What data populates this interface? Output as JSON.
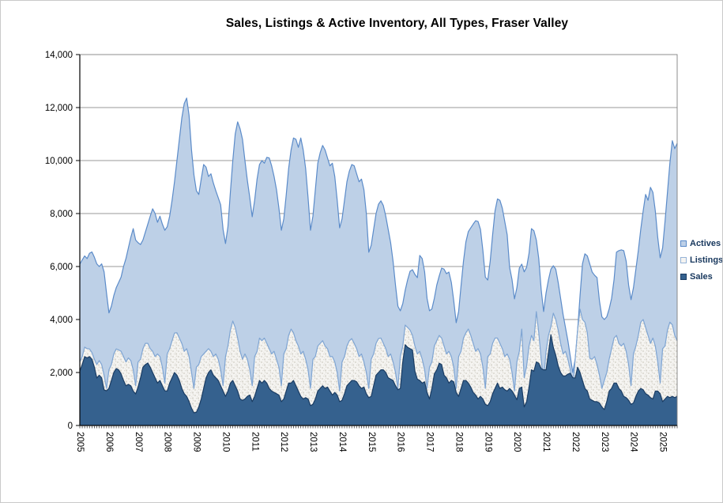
{
  "chart_data": {
    "type": "area",
    "mode": "overlapping",
    "title": "Sales, Listings & Active Inventory, All Types, Fraser Valley",
    "x_start": "2005-01",
    "x_end": "2025-07",
    "frequency": "monthly",
    "grid": "horizontal",
    "legend_position": "right",
    "legend_text_color": "#17375D",
    "x_tick_labels": [
      "2005",
      "2006",
      "2007",
      "2008",
      "2009",
      "2010",
      "2011",
      "2012",
      "2013",
      "2014",
      "2015",
      "2016",
      "2017",
      "2018",
      "2019",
      "2020",
      "2021",
      "2022",
      "2023",
      "2024",
      "2025"
    ],
    "y_axis": {
      "min": 0,
      "max": 14000,
      "step": 2000,
      "tick_labels": [
        "0",
        "2,000",
        "4,000",
        "6,000",
        "8,000",
        "10,000",
        "12,000",
        "14,000"
      ]
    },
    "series": [
      {
        "name": "Actives",
        "fill": "#BDD0E7",
        "stroke": "#5B8BC9",
        "values": [
          6090,
          6250,
          6400,
          6300,
          6500,
          6550,
          6350,
          6100,
          6000,
          6100,
          5800,
          5000,
          4250,
          4500,
          4900,
          5200,
          5400,
          5600,
          6000,
          6300,
          6700,
          7100,
          7430,
          7000,
          6900,
          6830,
          7000,
          7300,
          7600,
          7900,
          8180,
          8000,
          7670,
          7900,
          7600,
          7370,
          7500,
          7900,
          8500,
          9200,
          10000,
          10800,
          11600,
          12150,
          12360,
          11700,
          10400,
          9460,
          8860,
          8720,
          9300,
          9850,
          9750,
          9400,
          9500,
          9150,
          8860,
          8600,
          8330,
          7400,
          6870,
          7500,
          8800,
          10000,
          11000,
          11460,
          11200,
          10800,
          10000,
          9250,
          8600,
          7880,
          8500,
          9300,
          9850,
          10000,
          9900,
          10120,
          10100,
          9800,
          9400,
          8900,
          8200,
          7370,
          7800,
          8700,
          9700,
          10400,
          10850,
          10800,
          10500,
          10850,
          10400,
          9700,
          8600,
          7370,
          7900,
          8900,
          9900,
          10300,
          10570,
          10400,
          10100,
          9800,
          9900,
          9400,
          8500,
          7460,
          7800,
          8500,
          9200,
          9600,
          9850,
          9800,
          9500,
          9200,
          9300,
          8900,
          8000,
          6540,
          6800,
          7400,
          8000,
          8350,
          8480,
          8300,
          7900,
          7400,
          6900,
          6200,
          5300,
          4500,
          4330,
          4600,
          5100,
          5500,
          5820,
          5880,
          5700,
          5580,
          6420,
          6300,
          5800,
          4800,
          4330,
          4400,
          4800,
          5300,
          5640,
          5940,
          5900,
          5730,
          5790,
          5400,
          4700,
          3880,
          4300,
          5280,
          6200,
          6930,
          7320,
          7460,
          7600,
          7730,
          7700,
          7400,
          6600,
          5600,
          5490,
          6200,
          7200,
          8100,
          8550,
          8500,
          8200,
          7700,
          7200,
          5970,
          5500,
          4780,
          5200,
          5940,
          6090,
          5800,
          5970,
          6500,
          7430,
          7350,
          7000,
          6300,
          5130,
          4300,
          5000,
          5500,
          5900,
          6030,
          5900,
          5400,
          4800,
          4200,
          3700,
          3200,
          2600,
          2000,
          2500,
          3600,
          4900,
          6100,
          6480,
          6400,
          6100,
          5790,
          5670,
          5580,
          4700,
          4100,
          4000,
          4100,
          4400,
          4800,
          5500,
          6540,
          6600,
          6630,
          6600,
          6200,
          5300,
          4750,
          5200,
          5900,
          6600,
          7400,
          8100,
          8720,
          8500,
          8990,
          8800,
          8100,
          7100,
          6330,
          6700,
          7700,
          8800,
          9900,
          10750,
          10450,
          10650
        ]
      },
      {
        "name": "Listings",
        "fill": "#F5F4F1",
        "fill_style": "speckle-texture",
        "speckle_color": "#D3D0C7",
        "stroke": "#7FA5D3",
        "values": [
          2400,
          2600,
          2960,
          2900,
          2890,
          2750,
          2500,
          2300,
          2450,
          2300,
          1900,
          1400,
          2100,
          2300,
          2700,
          2890,
          2850,
          2800,
          2600,
          2400,
          2550,
          2450,
          2100,
          1500,
          2400,
          2500,
          2900,
          3100,
          3100,
          2900,
          2800,
          2600,
          2700,
          2600,
          2200,
          1600,
          2700,
          2900,
          3200,
          3490,
          3500,
          3300,
          3100,
          2800,
          2900,
          2600,
          2000,
          1400,
          2200,
          2300,
          2600,
          2700,
          2800,
          2900,
          2800,
          2600,
          2700,
          2500,
          2100,
          1500,
          2600,
          3000,
          3600,
          3940,
          3700,
          3300,
          2800,
          2500,
          2700,
          2500,
          2100,
          1500,
          2600,
          2800,
          3300,
          3200,
          3300,
          3100,
          2900,
          2700,
          2800,
          2500,
          2200,
          1500,
          2700,
          2900,
          3400,
          3640,
          3500,
          3200,
          3000,
          2700,
          2800,
          2500,
          2100,
          1400,
          2500,
          2600,
          3000,
          3100,
          3200,
          3000,
          2900,
          2600,
          2600,
          2400,
          2000,
          1300,
          2400,
          2600,
          3000,
          3200,
          3280,
          3100,
          2900,
          2600,
          2700,
          2400,
          2000,
          1400,
          2500,
          2700,
          3100,
          3280,
          3300,
          3100,
          2900,
          2600,
          2700,
          2400,
          2000,
          1400,
          2600,
          3000,
          3790,
          3700,
          3600,
          3400,
          3000,
          2700,
          2800,
          2500,
          2100,
          1400,
          2200,
          2400,
          3000,
          3200,
          3400,
          3300,
          3000,
          2700,
          2800,
          2600,
          2200,
          1400,
          2600,
          2800,
          3300,
          3500,
          3640,
          3400,
          3100,
          2800,
          2900,
          2700,
          2200,
          1400,
          2600,
          2700,
          3100,
          3300,
          3300,
          3100,
          2900,
          2600,
          2700,
          2500,
          2000,
          1300,
          2400,
          2800,
          3640,
          1800,
          2240,
          3000,
          3400,
          3200,
          4300,
          3500,
          2500,
          1700,
          2800,
          3400,
          3730,
          4240,
          4000,
          3600,
          3100,
          2700,
          2800,
          2500,
          2100,
          1400,
          2500,
          3600,
          4390,
          4000,
          3900,
          3500,
          2540,
          2500,
          2600,
          2300,
          1900,
          1400,
          1700,
          2000,
          2500,
          2900,
          3300,
          3400,
          3100,
          3000,
          3100,
          2800,
          2300,
          1500,
          2700,
          3000,
          3400,
          3900,
          4000,
          3700,
          3400,
          3100,
          3300,
          3000,
          2400,
          1600,
          2900,
          3000,
          3600,
          3900,
          3800,
          3400,
          3200
        ]
      },
      {
        "name": "Sales",
        "fill": "#35618E",
        "stroke": "#1A3C63",
        "values": [
          2060,
          2300,
          2600,
          2550,
          2600,
          2500,
          2200,
          1790,
          1900,
          1800,
          1340,
          1310,
          1400,
          1700,
          2000,
          2150,
          2100,
          1950,
          1700,
          1500,
          1550,
          1500,
          1300,
          1190,
          1450,
          1800,
          2200,
          2300,
          2360,
          2200,
          2000,
          1800,
          1600,
          1700,
          1500,
          1310,
          1300,
          1600,
          1800,
          2000,
          1900,
          1700,
          1400,
          1200,
          1100,
          900,
          650,
          480,
          500,
          700,
          1000,
          1400,
          1800,
          2000,
          2100,
          1900,
          1800,
          1700,
          1500,
          1300,
          1100,
          1300,
          1600,
          1700,
          1500,
          1300,
          1000,
          950,
          1000,
          1100,
          1150,
          900,
          1100,
          1400,
          1700,
          1600,
          1700,
          1600,
          1400,
          1300,
          1250,
          1200,
          1150,
          900,
          1000,
          1300,
          1600,
          1600,
          1700,
          1500,
          1300,
          1100,
          1000,
          1050,
          1000,
          750,
          800,
          1000,
          1300,
          1400,
          1500,
          1400,
          1450,
          1300,
          1150,
          1250,
          1150,
          900,
          950,
          1200,
          1500,
          1600,
          1700,
          1700,
          1650,
          1500,
          1400,
          1450,
          1200,
          1050,
          1100,
          1500,
          1900,
          2000,
          2100,
          2100,
          2000,
          1800,
          1750,
          1700,
          1500,
          1350,
          1400,
          2400,
          3050,
          2950,
          2900,
          2850,
          2050,
          1750,
          1700,
          1600,
          1650,
          1250,
          1000,
          1400,
          1950,
          2100,
          2350,
          2300,
          1900,
          1800,
          1600,
          1700,
          1650,
          1250,
          1100,
          1400,
          1700,
          1700,
          1600,
          1450,
          1250,
          1150,
          1000,
          1100,
          1000,
          800,
          750,
          900,
          1200,
          1400,
          1600,
          1400,
          1450,
          1350,
          1300,
          1400,
          1300,
          1150,
          970,
          1400,
          1450,
          700,
          900,
          1450,
          2100,
          2050,
          2400,
          2350,
          2150,
          2100,
          2100,
          2750,
          3430,
          2950,
          2650,
          2250,
          2000,
          1870,
          1870,
          1940,
          1970,
          1800,
          1790,
          2200,
          2000,
          1700,
          1400,
          1300,
          1000,
          950,
          900,
          900,
          850,
          700,
          600,
          900,
          1300,
          1400,
          1600,
          1600,
          1400,
          1300,
          1100,
          1050,
          950,
          800,
          850,
          1100,
          1300,
          1400,
          1350,
          1200,
          1150,
          1050,
          1000,
          1300,
          1300,
          1200,
          900,
          1000,
          1100,
          1050,
          1100,
          1050,
          1100
        ]
      }
    ]
  }
}
